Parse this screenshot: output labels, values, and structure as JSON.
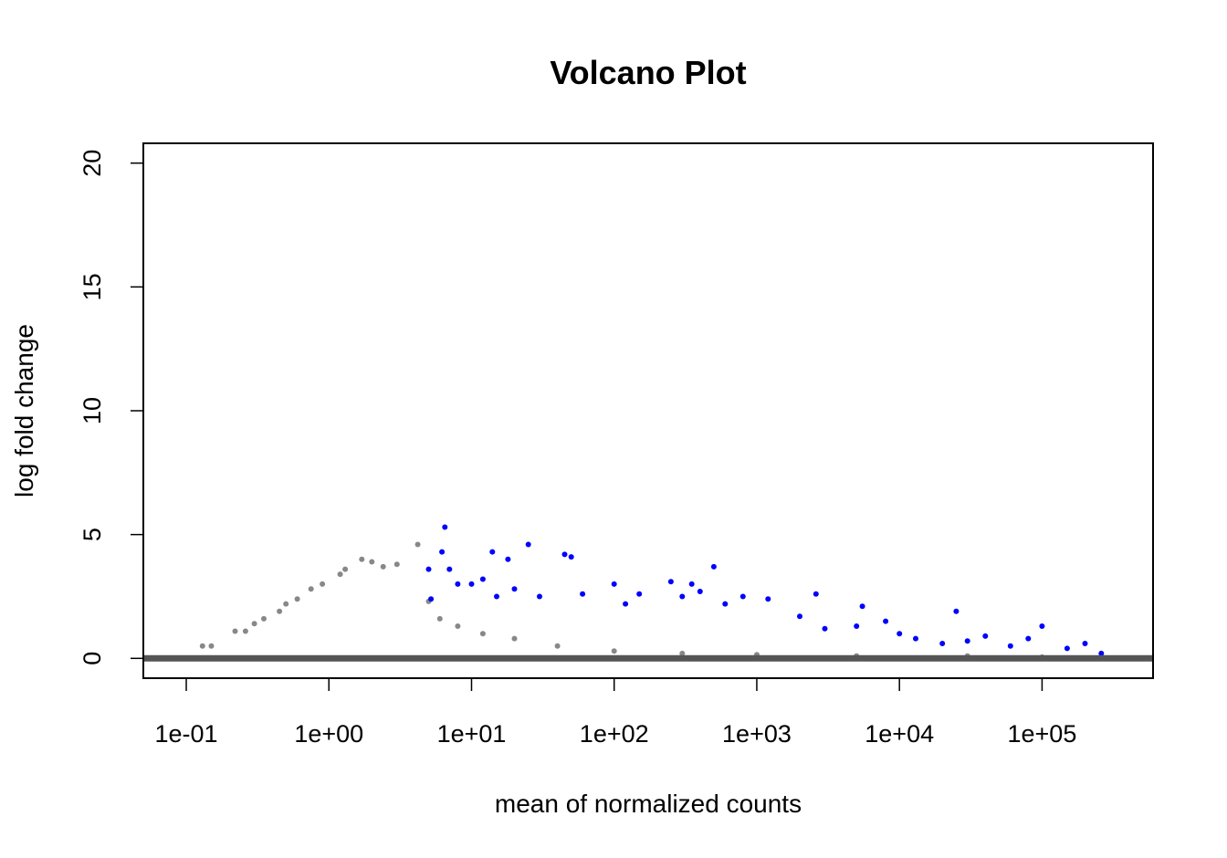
{
  "chart_data": {
    "type": "scatter",
    "title": "Volcano Plot",
    "xlabel": "mean of normalized counts",
    "ylabel": "log fold change",
    "x_scale": "log10",
    "xlim": [
      0.05,
      600000
    ],
    "ylim": [
      -0.8,
      20.8
    ],
    "x_ticks": [
      0.1,
      1,
      10,
      100,
      1000,
      10000,
      100000
    ],
    "x_tick_labels": [
      "1e-01",
      "1e+00",
      "1e+01",
      "1e+02",
      "1e+03",
      "1e+04",
      "1e+05"
    ],
    "y_ticks": [
      0,
      5,
      10,
      15,
      20
    ],
    "y_tick_labels": [
      "0",
      "5",
      "10",
      "15",
      "20"
    ],
    "grid": false,
    "colors": {
      "not_significant": "#888888",
      "significant": "#0000ff",
      "reference_line": "#555555"
    },
    "reference_line_y": 0,
    "series": [
      {
        "points": [
          [
            0.1,
            0.0
          ],
          [
            0.13,
            0.5
          ],
          [
            0.15,
            0.5
          ],
          [
            0.22,
            1.1
          ],
          [
            0.26,
            1.1
          ],
          [
            0.3,
            1.4
          ],
          [
            0.35,
            1.6
          ],
          [
            0.45,
            1.9
          ],
          [
            0.5,
            2.2
          ],
          [
            0.6,
            2.4
          ],
          [
            0.75,
            2.8
          ],
          [
            0.9,
            3.0
          ],
          [
            1.2,
            3.4
          ],
          [
            1.3,
            3.6
          ],
          [
            1.7,
            4.0
          ],
          [
            2.0,
            3.9
          ],
          [
            2.4,
            3.7
          ],
          [
            3.0,
            3.8
          ],
          [
            4.2,
            4.6
          ],
          [
            5.0,
            2.3
          ],
          [
            6.0,
            1.6
          ],
          [
            8.0,
            1.3
          ],
          [
            12,
            1.0
          ],
          [
            20,
            0.8
          ],
          [
            40,
            0.5
          ],
          [
            100,
            0.3
          ],
          [
            300,
            0.2
          ],
          [
            1000,
            0.15
          ],
          [
            5000,
            0.1
          ],
          [
            30000,
            0.1
          ],
          [
            100000,
            0.05
          ]
        ]
      },
      {
        "points": [
          [
            5.0,
            3.6
          ],
          [
            5.2,
            2.4
          ],
          [
            6.2,
            4.3
          ],
          [
            6.5,
            5.3
          ],
          [
            7.0,
            3.6
          ],
          [
            8.0,
            3.0
          ],
          [
            10,
            3.0
          ],
          [
            12,
            3.2
          ],
          [
            14,
            4.3
          ],
          [
            15,
            2.5
          ],
          [
            18,
            4.0
          ],
          [
            20,
            2.8
          ],
          [
            25,
            4.6
          ],
          [
            30,
            2.5
          ],
          [
            45,
            4.2
          ],
          [
            50,
            4.1
          ],
          [
            60,
            2.6
          ],
          [
            100,
            3.0
          ],
          [
            120,
            2.2
          ],
          [
            150,
            2.6
          ],
          [
            250,
            3.1
          ],
          [
            300,
            2.5
          ],
          [
            350,
            3.0
          ],
          [
            400,
            2.7
          ],
          [
            500,
            3.7
          ],
          [
            600,
            2.2
          ],
          [
            800,
            2.5
          ],
          [
            1200,
            2.4
          ],
          [
            2000,
            1.7
          ],
          [
            2600,
            2.6
          ],
          [
            3000,
            1.2
          ],
          [
            5000,
            1.3
          ],
          [
            5500,
            2.1
          ],
          [
            8000,
            1.5
          ],
          [
            10000,
            1.0
          ],
          [
            13000,
            0.8
          ],
          [
            20000,
            0.6
          ],
          [
            25000,
            1.9
          ],
          [
            30000,
            0.7
          ],
          [
            40000,
            0.9
          ],
          [
            60000,
            0.5
          ],
          [
            80000,
            0.8
          ],
          [
            100000,
            1.3
          ],
          [
            150000,
            0.4
          ],
          [
            200000,
            0.6
          ],
          [
            260000,
            0.2
          ]
        ]
      }
    ]
  }
}
